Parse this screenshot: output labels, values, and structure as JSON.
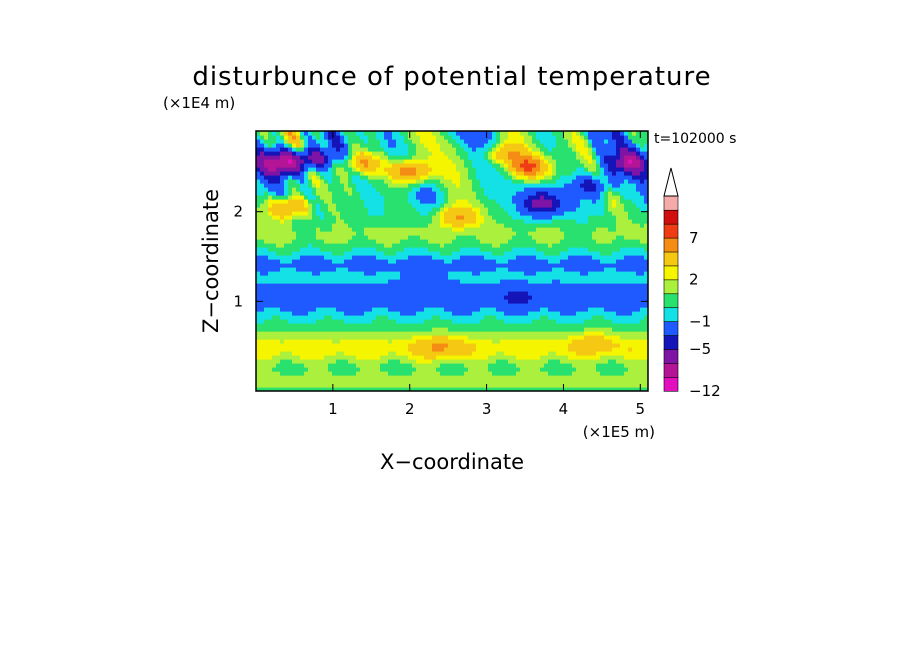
{
  "chart_data": {
    "type": "heatmap",
    "title": "disturbunce of potential temperature",
    "xlabel": "X−coordinate",
    "ylabel": "Z−coordinate",
    "x_unit": "(×1E5 m)",
    "y_unit": "(×1E4 m)",
    "time_label": "t=102000 s",
    "xlim": [
      0,
      5.1
    ],
    "ylim": [
      0,
      2.9
    ],
    "x_ticks": [
      1,
      2,
      3,
      4,
      5
    ],
    "y_ticks": [
      1,
      2
    ],
    "colorbar": {
      "levels": [
        -12,
        -10,
        -8,
        -5,
        -3,
        -1,
        0,
        1,
        2,
        3,
        5,
        7,
        9,
        11
      ],
      "labels": [
        "−12",
        "−5",
        "−1",
        "2",
        "7"
      ],
      "label_levels": [
        -12,
        -5,
        -1,
        2,
        7
      ],
      "colors": [
        "#e10fbe",
        "#b41496",
        "#7d14a5",
        "#1414b9",
        "#1e5aff",
        "#14e1e6",
        "#28e16e",
        "#aaf03c",
        "#f5f500",
        "#f5c814",
        "#f58c14",
        "#f03c14",
        "#d20f0f",
        "#f5aaaa"
      ],
      "extend": "max"
    },
    "features": [
      {
        "x": 0.3,
        "z": 2.55,
        "value": -9
      },
      {
        "x": 0.7,
        "z": 2.6,
        "value": -7
      },
      {
        "x": 0.4,
        "z": 2.05,
        "value": 6
      },
      {
        "x": 1.4,
        "z": 2.55,
        "value": 5
      },
      {
        "x": 2.0,
        "z": 2.45,
        "value": 7
      },
      {
        "x": 2.6,
        "z": 1.95,
        "value": 5
      },
      {
        "x": 3.2,
        "z": 2.65,
        "value": 5
      },
      {
        "x": 3.55,
        "z": 2.5,
        "value": 7
      },
      {
        "x": 3.75,
        "z": 2.1,
        "value": -6
      },
      {
        "x": 4.4,
        "z": 2.3,
        "value": -4
      },
      {
        "x": 4.85,
        "z": 2.55,
        "value": -7
      },
      {
        "x": 2.2,
        "z": 1.3,
        "value": -1
      },
      {
        "x": 3.5,
        "z": 1.05,
        "value": -1
      },
      {
        "x": 2.4,
        "z": 0.5,
        "value": 3
      },
      {
        "x": 4.4,
        "z": 0.55,
        "value": 2
      }
    ]
  }
}
